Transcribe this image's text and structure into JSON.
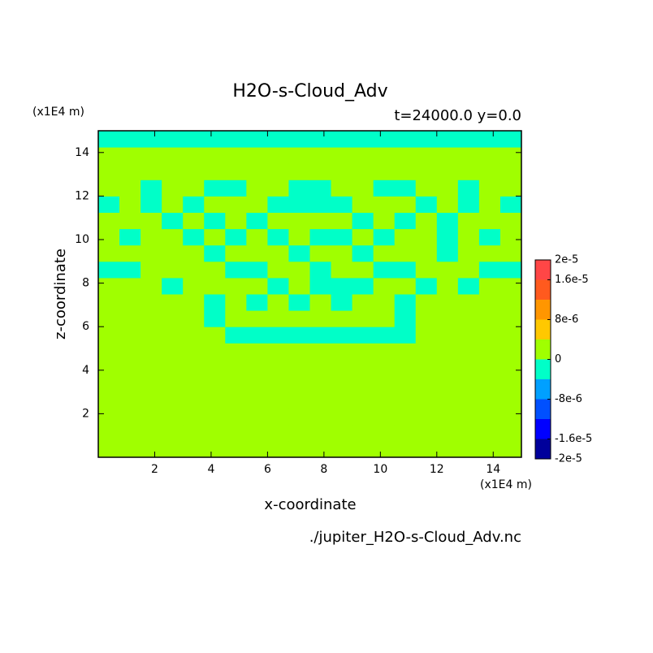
{
  "chart_data": {
    "type": "heatmap",
    "title": "H2O-s-Cloud_Adv",
    "subtitle": "t=24000.0 y=0.0",
    "x_label": "x-coordinate",
    "y_label": "z-coordinate",
    "x_unit": "(x1E4 m)",
    "y_unit": "(x1E4 m)",
    "source": "./jupiter_H2O-s-Cloud_Adv.nc",
    "xlim": [
      0,
      15
    ],
    "ylim": [
      0,
      15
    ],
    "xticks": [
      2,
      4,
      6,
      8,
      10,
      12,
      14
    ],
    "yticks": [
      2,
      4,
      6,
      8,
      10,
      12,
      14
    ],
    "x": [
      0.375,
      1.125,
      1.875,
      2.625,
      3.375,
      4.125,
      4.875,
      5.625,
      6.375,
      7.125,
      7.875,
      8.625,
      9.375,
      10.125,
      10.875,
      11.625,
      12.375,
      13.125,
      13.875,
      14.625
    ],
    "y": [
      0.375,
      1.125,
      1.875,
      2.625,
      3.375,
      4.125,
      4.875,
      5.625,
      6.375,
      7.125,
      7.875,
      8.625,
      9.375,
      10.125,
      10.875,
      11.625,
      12.375,
      13.125,
      13.875,
      14.625
    ],
    "values": [
      [
        0,
        0,
        0,
        0,
        0,
        0,
        0,
        0,
        0,
        0,
        0,
        0,
        0,
        0,
        0,
        0,
        0,
        0,
        0,
        0
      ],
      [
        0,
        0,
        0,
        0,
        0,
        0,
        0,
        0,
        0,
        0,
        0,
        0,
        0,
        0,
        0,
        0,
        0,
        0,
        0,
        0
      ],
      [
        0,
        0,
        0,
        0,
        0,
        0,
        0,
        0,
        0,
        0,
        0,
        0,
        0,
        0,
        0,
        0,
        0,
        0,
        0,
        0
      ],
      [
        0,
        0,
        0,
        0,
        0,
        0,
        0,
        0,
        0,
        0,
        0,
        0,
        0,
        0,
        0,
        0,
        0,
        0,
        0,
        0
      ],
      [
        0,
        0,
        0,
        0,
        0,
        0,
        0,
        0,
        0,
        0,
        0,
        0,
        0,
        0,
        0,
        0,
        0,
        0,
        0,
        0
      ],
      [
        0,
        0,
        0,
        0,
        0,
        0,
        0,
        0,
        0,
        0,
        0,
        0,
        0,
        0,
        0,
        0,
        0,
        0,
        0,
        0
      ],
      [
        0,
        0,
        0,
        0,
        0,
        0,
        0,
        0,
        0,
        0,
        0,
        0,
        0,
        0,
        0,
        0,
        0,
        0,
        0,
        0
      ],
      [
        0,
        0,
        0,
        0,
        0,
        0,
        -2e-06,
        -2e-06,
        -2e-06,
        -2e-06,
        -2e-06,
        -2e-06,
        -2e-06,
        -2e-06,
        -2e-06,
        0,
        0,
        0,
        0,
        0
      ],
      [
        0,
        0,
        0,
        0,
        0,
        -2e-06,
        0,
        0,
        0,
        0,
        0,
        0,
        0,
        0,
        -2e-06,
        0,
        0,
        0,
        0,
        0
      ],
      [
        0,
        0,
        0,
        0,
        0,
        -2e-06,
        0,
        -2e-06,
        0,
        -2e-06,
        0,
        -2e-06,
        0,
        0,
        -2e-06,
        0,
        0,
        0,
        0,
        0
      ],
      [
        0,
        0,
        0,
        -2e-06,
        0,
        0,
        0,
        0,
        -2e-06,
        0,
        -2e-06,
        -2e-06,
        -2e-06,
        0,
        0,
        -2e-06,
        0,
        -2e-06,
        0,
        0
      ],
      [
        -2e-06,
        -2e-06,
        0,
        0,
        0,
        0,
        -2e-06,
        -2e-06,
        0,
        0,
        -2e-06,
        0,
        0,
        -2e-06,
        -2e-06,
        0,
        0,
        0,
        -2e-06,
        -2e-06
      ],
      [
        0,
        0,
        0,
        0,
        0,
        -2e-06,
        0,
        0,
        0,
        -2e-06,
        0,
        0,
        -2e-06,
        0,
        0,
        0,
        -2e-06,
        0,
        0,
        0
      ],
      [
        0,
        -2e-06,
        0,
        0,
        -2e-06,
        0,
        -2e-06,
        0,
        -2e-06,
        0,
        -2e-06,
        -2e-06,
        0,
        -2e-06,
        0,
        0,
        -2e-06,
        0,
        -2e-06,
        0
      ],
      [
        0,
        0,
        0,
        -2e-06,
        0,
        -2e-06,
        0,
        -2e-06,
        0,
        0,
        0,
        0,
        -2e-06,
        0,
        -2e-06,
        0,
        -2e-06,
        0,
        0,
        0
      ],
      [
        -2e-06,
        0,
        -2e-06,
        0,
        -2e-06,
        0,
        0,
        0,
        -2e-06,
        -2e-06,
        -2e-06,
        -2e-06,
        0,
        0,
        0,
        -2e-06,
        0,
        -2e-06,
        0,
        -2e-06
      ],
      [
        0,
        0,
        -2e-06,
        0,
        0,
        -2e-06,
        -2e-06,
        0,
        0,
        -2e-06,
        -2e-06,
        0,
        0,
        -2e-06,
        -2e-06,
        0,
        0,
        -2e-06,
        0,
        0
      ],
      [
        0,
        0,
        0,
        0,
        0,
        0,
        0,
        0,
        0,
        0,
        0,
        0,
        0,
        0,
        0,
        0,
        0,
        0,
        0,
        0
      ],
      [
        0,
        0,
        0,
        0,
        0,
        0,
        0,
        0,
        0,
        0,
        0,
        0,
        0,
        0,
        0,
        0,
        0,
        0,
        0,
        0
      ],
      [
        -2e-06,
        -2e-06,
        -2e-06,
        -2e-06,
        -2e-06,
        -2e-06,
        -2e-06,
        -2e-06,
        -2e-06,
        -2e-06,
        -2e-06,
        -2e-06,
        -2e-06,
        -2e-06,
        -2e-06,
        -2e-06,
        -2e-06,
        -2e-06,
        -2e-06,
        -2e-06
      ]
    ],
    "levels": [
      -2e-05,
      -1.6e-05,
      -1.2e-05,
      -8e-06,
      -4e-06,
      0,
      4e-06,
      8e-06,
      1.2e-05,
      1.6e-05,
      2e-05
    ],
    "colors": [
      "#00009b",
      "#0000ff",
      "#0050ff",
      "#00a0ff",
      "#00ffc8",
      "#a0ff00",
      "#ffc800",
      "#ff9600",
      "#ff5a1e",
      "#ff4646"
    ],
    "cticks": [
      {
        "value": 2e-05,
        "label": "2e-5"
      },
      {
        "value": 1.6e-05,
        "label": "1.6e-5"
      },
      {
        "value": 8e-06,
        "label": "8e-6"
      },
      0,
      {
        "value": -8e-06,
        "label": "-8e-6"
      },
      {
        "value": -1.6e-05,
        "label": "-1.6e-5"
      },
      {
        "value": -2e-05,
        "label": "-2e-5"
      }
    ]
  }
}
